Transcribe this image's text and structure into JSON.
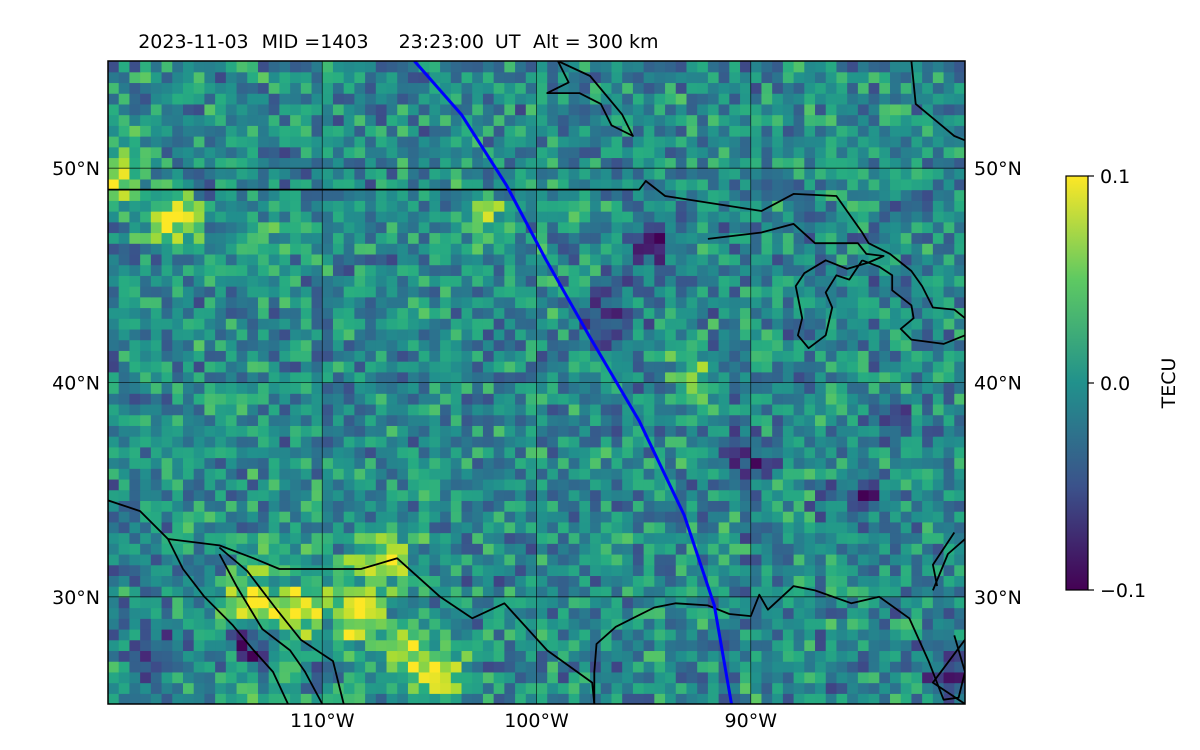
{
  "title": {
    "date": "2023-11-03",
    "mid": "MID =1403",
    "time": "23:23:00",
    "tz": "UT",
    "alt": "Alt = 300 km"
  },
  "map": {
    "lon_range": [
      -120,
      -80
    ],
    "lat_range": [
      25,
      55
    ],
    "grid_lons": [
      -110,
      -100,
      -90
    ],
    "grid_lats": [
      30,
      40,
      50
    ],
    "lon_tick_labels": [
      "110°W",
      "100°W",
      "90°W"
    ],
    "lat_tick_labels": [
      "30°N",
      "40°N",
      "50°N"
    ]
  },
  "colorbar": {
    "label": "TECU",
    "ticks": [
      "0.1",
      "0.0",
      "−0.1"
    ],
    "min": -0.1,
    "max": 0.1,
    "colors": [
      "#440154",
      "#3b528b",
      "#21918c",
      "#5ec962",
      "#fde725"
    ]
  },
  "track": {
    "color": "#0000ff",
    "points": [
      [
        -105.7,
        55
      ],
      [
        -103.5,
        52.5
      ],
      [
        -101.4,
        49.2
      ],
      [
        -99.6,
        45.8
      ],
      [
        -97.5,
        42.1
      ],
      [
        -95.2,
        38.2
      ],
      [
        -93.1,
        33.8
      ],
      [
        -91.7,
        29.6
      ],
      [
        -90.9,
        25
      ]
    ]
  },
  "field": {
    "seed": 1403,
    "cell_deg": 0.5,
    "hotspots": [
      [
        -119.7,
        49.4,
        0.1
      ],
      [
        -117.0,
        47.3,
        0.1
      ],
      [
        -113.5,
        29.5,
        0.08
      ],
      [
        -111.5,
        29.2,
        0.08
      ],
      [
        -108.5,
        28.8,
        0.09
      ],
      [
        -107.5,
        31.5,
        0.07
      ],
      [
        -104.5,
        26.0,
        0.08
      ],
      [
        -102.7,
        47.5,
        0.06
      ],
      [
        -98.8,
        48.0,
        0.05
      ],
      [
        -92.7,
        40.0,
        0.06
      ],
      [
        -113.0,
        45.9,
        0.05
      ],
      [
        -110.0,
        25.6,
        0.05
      ],
      [
        -106.0,
        27.0,
        0.06
      ]
    ],
    "coldspots": [
      [
        -113.5,
        27.5,
        -0.1
      ],
      [
        -110.0,
        26.0,
        -0.09
      ],
      [
        -95.0,
        46.0,
        -0.07
      ],
      [
        -90.5,
        36.0,
        -0.08
      ],
      [
        -81.0,
        26.0,
        -0.08
      ],
      [
        -85.0,
        34.5,
        -0.07
      ],
      [
        -118.0,
        27.0,
        -0.06
      ],
      [
        -97.0,
        42.5,
        -0.07
      ],
      [
        -83.5,
        38.0,
        -0.05
      ]
    ]
  },
  "coastlines": [
    [
      [
        -120,
        34.5
      ],
      [
        -118.5,
        34.0
      ],
      [
        -117.2,
        32.7
      ],
      [
        -116.5,
        31.3
      ],
      [
        -115.5,
        30.0
      ],
      [
        -114.2,
        28.7
      ],
      [
        -113.2,
        27.5
      ],
      [
        -112.3,
        26.5
      ],
      [
        -111.6,
        25.0
      ]
    ],
    [
      [
        -117.2,
        32.7
      ],
      [
        -114.8,
        32.4
      ],
      [
        -113.2,
        31.8
      ],
      [
        -112.0,
        31.3
      ],
      [
        -108.2,
        31.3
      ],
      [
        -106.5,
        31.8
      ],
      [
        -104.5,
        30.0
      ],
      [
        -103.0,
        29.0
      ],
      [
        -101.5,
        29.7
      ],
      [
        -99.5,
        27.5
      ],
      [
        -97.4,
        26.0
      ],
      [
        -97.3,
        25.0
      ]
    ],
    [
      [
        -114.8,
        32.0
      ],
      [
        -114.0,
        30.5
      ],
      [
        -112.8,
        28.5
      ],
      [
        -111.5,
        27.5
      ],
      [
        -110.8,
        26.5
      ],
      [
        -110.0,
        25.0
      ]
    ],
    [
      [
        -114.8,
        32.3
      ],
      [
        -113.5,
        31.2
      ],
      [
        -112.2,
        29.5
      ],
      [
        -111.0,
        28.0
      ],
      [
        -109.5,
        27.0
      ],
      [
        -109.0,
        25.0
      ]
    ],
    [
      [
        -97.3,
        25.0
      ],
      [
        -97.3,
        26.5
      ],
      [
        -97.2,
        27.8
      ],
      [
        -96.3,
        28.6
      ],
      [
        -94.5,
        29.5
      ],
      [
        -93.5,
        29.7
      ],
      [
        -92.0,
        29.6
      ],
      [
        -91.0,
        29.2
      ],
      [
        -90.0,
        29.1
      ],
      [
        -89.6,
        30.1
      ],
      [
        -89.2,
        29.4
      ],
      [
        -88.0,
        30.5
      ],
      [
        -87.0,
        30.3
      ],
      [
        -85.3,
        29.7
      ],
      [
        -84.0,
        30.0
      ],
      [
        -82.6,
        29.0
      ],
      [
        -81.7,
        27.0
      ],
      [
        -81.0,
        25.2
      ],
      [
        -80.3,
        25.3
      ],
      [
        -80.0,
        26.5
      ],
      [
        -80.5,
        28.2
      ]
    ],
    [
      [
        -81.5,
        30.3
      ],
      [
        -80.8,
        32.0
      ],
      [
        -80.0,
        32.7
      ]
    ],
    [
      [
        -120,
        49.0
      ],
      [
        -95.2,
        49.0
      ],
      [
        -94.9,
        49.4
      ],
      [
        -94.0,
        48.7
      ],
      [
        -89.5,
        48.0
      ],
      [
        -88.0,
        48.8
      ],
      [
        -86.0,
        48.7
      ],
      [
        -84.8,
        47.0
      ],
      [
        -84.5,
        46.5
      ],
      [
        -83.5,
        46.0
      ],
      [
        -82.5,
        45.2
      ],
      [
        -82.0,
        44.5
      ],
      [
        -81.5,
        43.5
      ],
      [
        -80.5,
        43.4
      ],
      [
        -80.0,
        43.0
      ]
    ],
    [
      [
        -92.0,
        46.7
      ],
      [
        -89.5,
        47.0
      ],
      [
        -88.0,
        47.4
      ],
      [
        -87.0,
        46.5
      ],
      [
        -85.0,
        46.5
      ],
      [
        -84.6,
        46.0
      ],
      [
        -83.8,
        45.9
      ],
      [
        -84.5,
        45.6
      ],
      [
        -85.5,
        45.3
      ],
      [
        -86.5,
        45.7
      ],
      [
        -87.5,
        45.1
      ],
      [
        -87.9,
        44.5
      ],
      [
        -87.6,
        43.0
      ],
      [
        -87.8,
        42.2
      ],
      [
        -87.3,
        41.6
      ],
      [
        -86.5,
        42.2
      ],
      [
        -86.2,
        43.5
      ],
      [
        -86.5,
        44.2
      ],
      [
        -86.0,
        45.0
      ],
      [
        -85.4,
        44.8
      ],
      [
        -84.8,
        45.7
      ]
    ],
    [
      [
        -84.8,
        45.7
      ],
      [
        -84.0,
        45.4
      ],
      [
        -83.4,
        45.0
      ],
      [
        -83.4,
        44.3
      ],
      [
        -82.5,
        43.6
      ],
      [
        -82.4,
        43.0
      ],
      [
        -83.0,
        42.5
      ],
      [
        -82.5,
        42.0
      ],
      [
        -81.0,
        41.8
      ],
      [
        -80.0,
        42.2
      ]
    ],
    [
      [
        -99.0,
        55.0
      ],
      [
        -97.5,
        54.3
      ],
      [
        -96.0,
        52.5
      ],
      [
        -95.5,
        51.5
      ],
      [
        -96.5,
        52.0
      ],
      [
        -97.0,
        53.0
      ],
      [
        -98.0,
        53.5
      ],
      [
        -99.5,
        53.5
      ],
      [
        -98.5,
        54.0
      ],
      [
        -99.0,
        55.0
      ]
    ],
    [
      [
        -82.5,
        55.0
      ],
      [
        -82.3,
        53.0
      ],
      [
        -80.5,
        51.5
      ],
      [
        -80.0,
        51.3
      ]
    ],
    [
      [
        -80.0,
        28.0
      ],
      [
        -81.5,
        26.0
      ],
      [
        -80.0,
        25.0
      ]
    ],
    [
      [
        -80.5,
        33.0
      ],
      [
        -81.5,
        31.5
      ],
      [
        -81.3,
        30.5
      ]
    ]
  ]
}
